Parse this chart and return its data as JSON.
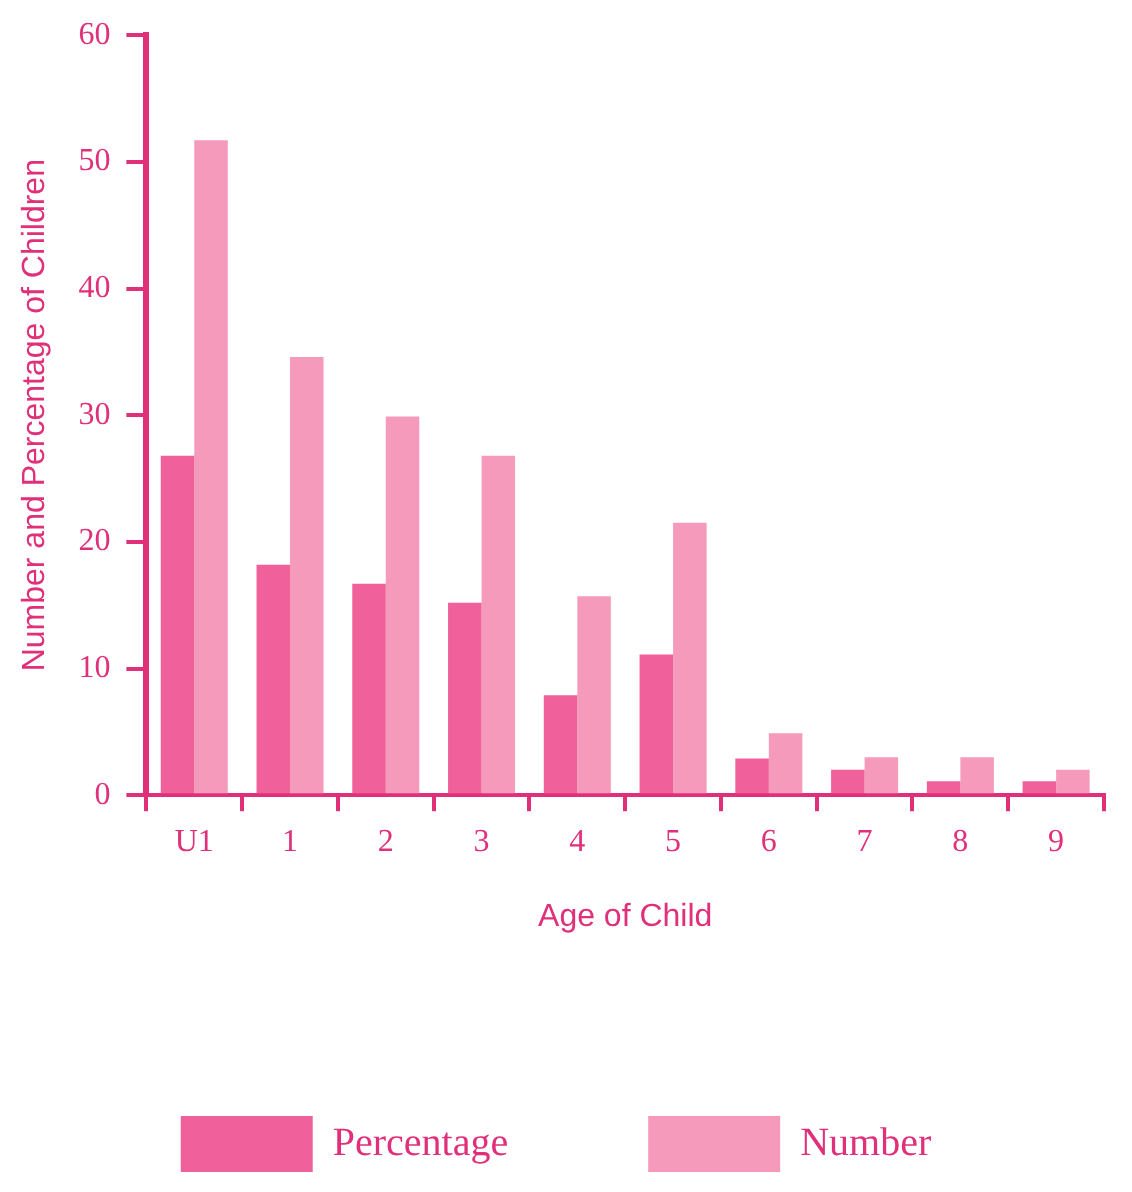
{
  "chart_data": {
    "type": "bar",
    "xlabel": "Age of Child",
    "ylabel": "Number and Percentage of Children",
    "categories": [
      "U1",
      "1",
      "2",
      "3",
      "4",
      "5",
      "6",
      "7",
      "8",
      "9"
    ],
    "series": [
      {
        "name": "Percentage",
        "color": "#f0609a",
        "values": [
          26.8,
          18.2,
          16.7,
          15.2,
          7.9,
          11.1,
          2.9,
          2,
          1.1,
          1.1
        ]
      },
      {
        "name": "Number",
        "color": "#f59abb",
        "values": [
          51.7,
          34.6,
          29.9,
          26.8,
          15.7,
          21.5,
          4.9,
          3,
          3,
          2
        ]
      }
    ],
    "ylim": [
      0,
      60
    ],
    "yticks": [
      0,
      10,
      20,
      30,
      40,
      50,
      60
    ],
    "grid": false,
    "legend": "bottom"
  }
}
